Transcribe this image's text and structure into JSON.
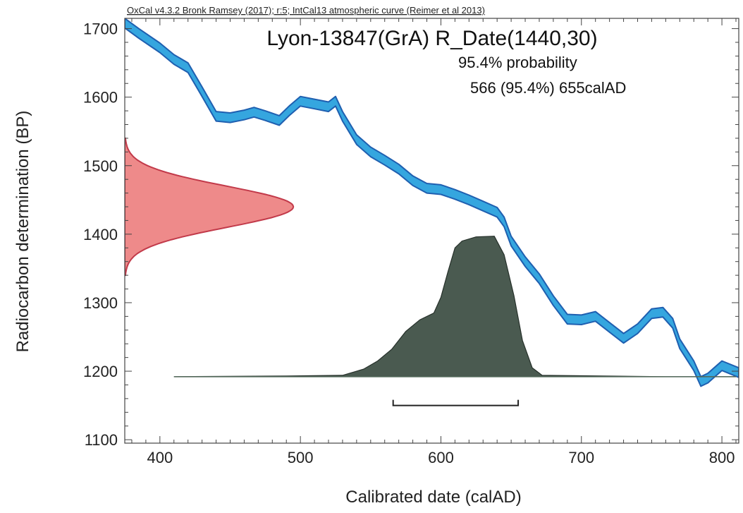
{
  "header": "OxCal v4.3.2 Bronk Ramsey (2017); r:5; IntCal13 atmospheric curve (Reimer et al 2013)",
  "colors": {
    "calibration_curve": "#35a6df",
    "calibration_edge": "#1f5fb0",
    "radiocarbon_fill": "#ee8a8a",
    "radiocarbon_edge": "#c23a4a",
    "posterior_fill": "#4a5a50",
    "posterior_edge": "#26302a"
  },
  "chart_data": {
    "type": "area",
    "title": "Lyon-13847(GrA) R_Date(1440,30)",
    "probability_label": "95.4% probability",
    "range_label": "566 (95.4%) 655calAD",
    "xlabel": "Calibrated date (calAD)",
    "ylabel": "Radiocarbon determination (BP)",
    "xlim": [
      375,
      812
    ],
    "ylim": [
      1095,
      1715
    ],
    "x_ticks": [
      400,
      500,
      600,
      700,
      800
    ],
    "y_ticks": [
      1100,
      1200,
      1300,
      1400,
      1500,
      1600,
      1700
    ],
    "grid": false,
    "calibration_curve": {
      "name": "IntCal13",
      "x": [
        375,
        385,
        400,
        410,
        420,
        430,
        440,
        450,
        460,
        467,
        475,
        485,
        492,
        500,
        510,
        520,
        525,
        530,
        540,
        550,
        560,
        570,
        580,
        590,
        600,
        610,
        620,
        630,
        640,
        645,
        650,
        660,
        670,
        680,
        690,
        700,
        710,
        720,
        730,
        740,
        750,
        758,
        765,
        770,
        780,
        785,
        790,
        800,
        812
      ],
      "y": [
        1708,
        1693,
        1672,
        1655,
        1643,
        1608,
        1572,
        1570,
        1574,
        1578,
        1573,
        1566,
        1580,
        1594,
        1590,
        1586,
        1594,
        1572,
        1538,
        1520,
        1508,
        1495,
        1478,
        1467,
        1465,
        1458,
        1450,
        1441,
        1432,
        1418,
        1390,
        1360,
        1335,
        1303,
        1276,
        1275,
        1280,
        1264,
        1248,
        1262,
        1284,
        1286,
        1270,
        1240,
        1208,
        1185,
        1190,
        1208,
        1198
      ],
      "band_width": 14
    },
    "radiocarbon_date": {
      "mean": 1440,
      "error": 30,
      "x_range": [
        375,
        495
      ],
      "y_range": [
        1340,
        1540
      ]
    },
    "posterior": {
      "baseline": 1192,
      "x": [
        410,
        490,
        530,
        545,
        555,
        565,
        575,
        585,
        595,
        600,
        605,
        610,
        615,
        625,
        638,
        645,
        652,
        658,
        665,
        672,
        760,
        810
      ],
      "y": [
        1192,
        1193,
        1194,
        1203,
        1215,
        1232,
        1258,
        1275,
        1285,
        1308,
        1345,
        1380,
        1390,
        1396,
        1397,
        1370,
        1310,
        1245,
        1205,
        1194,
        1192,
        1192
      ]
    },
    "range_bar": {
      "from": 566,
      "to": 655,
      "y": 1150
    }
  }
}
